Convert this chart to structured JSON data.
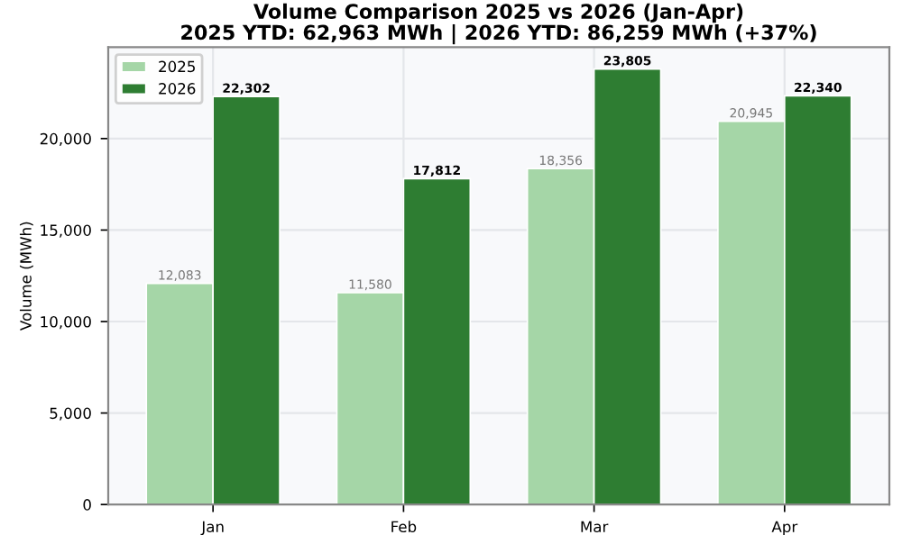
{
  "chart_data": {
    "type": "bar",
    "title": "Volume Comparison 2025 vs 2026 (Jan-Apr)\n2025 YTD: 62,963 MWh | 2026 YTD: 86,259 MWh (+37%)",
    "ylabel": "Volume (MWh)",
    "categories": [
      "Jan",
      "Feb",
      "Mar",
      "Apr"
    ],
    "series": [
      {
        "name": "2025",
        "color": "#a5d6a7",
        "values": [
          12083,
          11580,
          18356,
          20945
        ],
        "value_labels": [
          "12,083",
          "11,580",
          "18,356",
          "20,945"
        ]
      },
      {
        "name": "2026",
        "color": "#2e7d32",
        "values": [
          22302,
          17812,
          23805,
          22340
        ],
        "value_labels": [
          "22,302",
          "17,812",
          "23,805",
          "22,340"
        ]
      }
    ],
    "ylim": [
      0,
      25000
    ],
    "yticks": [
      {
        "value": 0,
        "label": "0"
      },
      {
        "value": 5000,
        "label": "5,000"
      },
      {
        "value": 10000,
        "label": "10,000"
      },
      {
        "value": 15000,
        "label": "15,000"
      },
      {
        "value": 20000,
        "label": "20,000"
      }
    ],
    "grid": true,
    "legend": "top left"
  }
}
